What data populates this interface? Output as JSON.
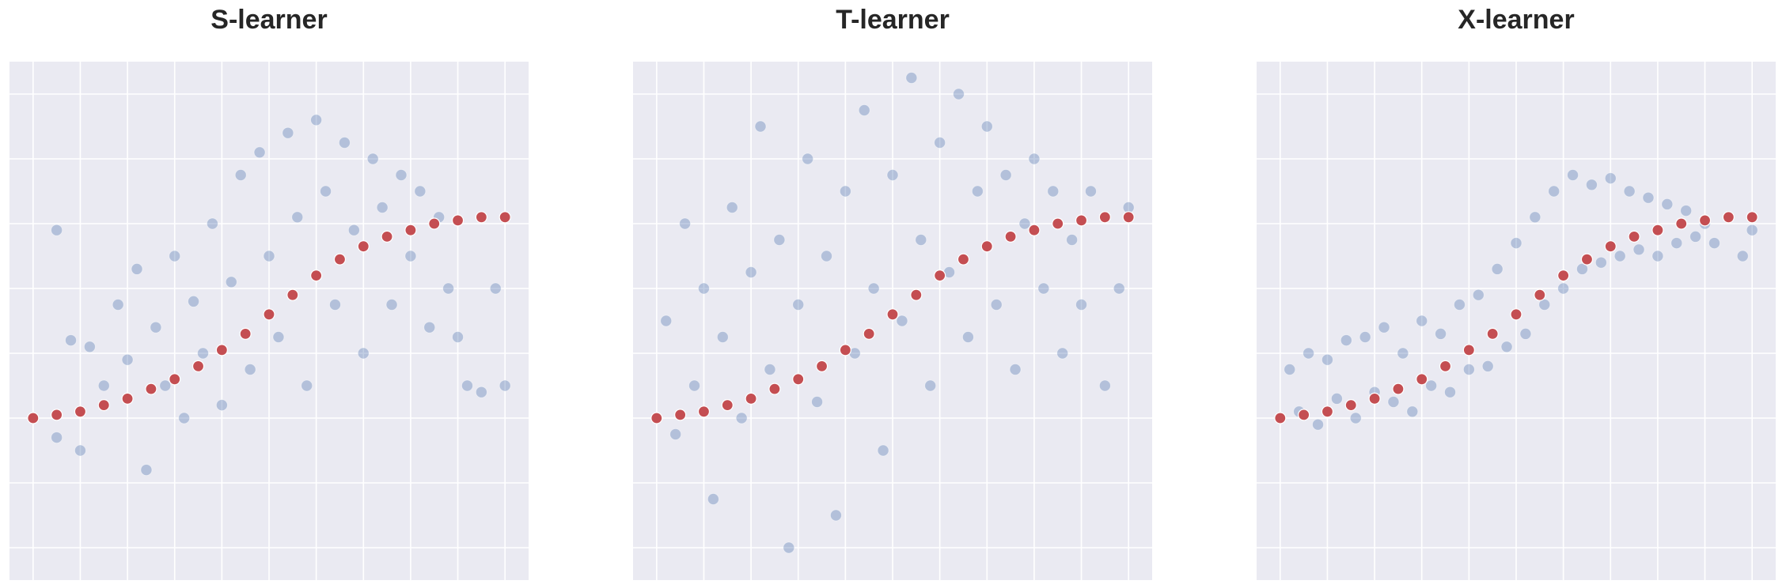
{
  "colors": {
    "background": "#eaeaf2",
    "grid": "#ffffff",
    "scatter": "#4c72b0",
    "curve": "#c44e52"
  },
  "chart_data": [
    {
      "type": "scatter",
      "title": "S-learner",
      "xlabel": "",
      "ylabel": "",
      "xlim": [
        -0.05,
        1.05
      ],
      "ylim": [
        -0.3,
        1.3
      ],
      "grid": true,
      "series": [
        {
          "role": "estimates",
          "color": "#4c72b0",
          "alpha": 0.35,
          "points": [
            [
              0.05,
              0.14
            ],
            [
              0.08,
              0.44
            ],
            [
              0.05,
              0.78
            ],
            [
              0.1,
              0.1
            ],
            [
              0.12,
              0.42
            ],
            [
              0.15,
              0.3
            ],
            [
              0.18,
              0.55
            ],
            [
              0.2,
              0.38
            ],
            [
              0.22,
              0.66
            ],
            [
              0.24,
              0.04
            ],
            [
              0.26,
              0.48
            ],
            [
              0.28,
              0.3
            ],
            [
              0.3,
              0.7
            ],
            [
              0.32,
              0.2
            ],
            [
              0.34,
              0.56
            ],
            [
              0.36,
              0.4
            ],
            [
              0.38,
              0.8
            ],
            [
              0.4,
              0.24
            ],
            [
              0.42,
              0.62
            ],
            [
              0.44,
              0.95
            ],
            [
              0.46,
              0.35
            ],
            [
              0.48,
              1.02
            ],
            [
              0.5,
              0.7
            ],
            [
              0.52,
              0.45
            ],
            [
              0.54,
              1.08
            ],
            [
              0.56,
              0.82
            ],
            [
              0.58,
              0.3
            ],
            [
              0.6,
              1.12
            ],
            [
              0.62,
              0.9
            ],
            [
              0.64,
              0.55
            ],
            [
              0.66,
              1.05
            ],
            [
              0.68,
              0.78
            ],
            [
              0.7,
              0.4
            ],
            [
              0.72,
              1.0
            ],
            [
              0.74,
              0.85
            ],
            [
              0.76,
              0.55
            ],
            [
              0.78,
              0.95
            ],
            [
              0.8,
              0.7
            ],
            [
              0.82,
              0.9
            ],
            [
              0.84,
              0.48
            ],
            [
              0.86,
              0.82
            ],
            [
              0.88,
              0.6
            ],
            [
              0.9,
              0.45
            ],
            [
              0.92,
              0.3
            ],
            [
              0.95,
              0.28
            ],
            [
              0.98,
              0.6
            ],
            [
              1.0,
              0.3
            ]
          ]
        },
        {
          "role": "true-effect",
          "color": "#c44e52",
          "points": [
            [
              0.0,
              0.2
            ],
            [
              0.05,
              0.21
            ],
            [
              0.1,
              0.22
            ],
            [
              0.15,
              0.24
            ],
            [
              0.2,
              0.26
            ],
            [
              0.25,
              0.29
            ],
            [
              0.3,
              0.32
            ],
            [
              0.35,
              0.36
            ],
            [
              0.4,
              0.41
            ],
            [
              0.45,
              0.46
            ],
            [
              0.5,
              0.52
            ],
            [
              0.55,
              0.58
            ],
            [
              0.6,
              0.64
            ],
            [
              0.65,
              0.69
            ],
            [
              0.7,
              0.73
            ],
            [
              0.75,
              0.76
            ],
            [
              0.8,
              0.78
            ],
            [
              0.85,
              0.8
            ],
            [
              0.9,
              0.81
            ],
            [
              0.95,
              0.82
            ],
            [
              1.0,
              0.82
            ]
          ]
        }
      ]
    },
    {
      "type": "scatter",
      "title": "T-learner",
      "xlabel": "",
      "ylabel": "",
      "xlim": [
        -0.05,
        1.05
      ],
      "ylim": [
        -0.3,
        1.3
      ],
      "grid": true,
      "series": [
        {
          "role": "estimates",
          "color": "#4c72b0",
          "alpha": 0.35,
          "points": [
            [
              0.02,
              0.5
            ],
            [
              0.04,
              0.15
            ],
            [
              0.06,
              0.8
            ],
            [
              0.08,
              0.3
            ],
            [
              0.1,
              0.6
            ],
            [
              0.12,
              -0.05
            ],
            [
              0.14,
              0.45
            ],
            [
              0.16,
              0.85
            ],
            [
              0.18,
              0.2
            ],
            [
              0.2,
              0.65
            ],
            [
              0.22,
              1.1
            ],
            [
              0.24,
              0.35
            ],
            [
              0.26,
              0.75
            ],
            [
              0.28,
              -0.2
            ],
            [
              0.3,
              0.55
            ],
            [
              0.32,
              1.0
            ],
            [
              0.34,
              0.25
            ],
            [
              0.36,
              0.7
            ],
            [
              0.38,
              -0.1
            ],
            [
              0.4,
              0.9
            ],
            [
              0.42,
              0.4
            ],
            [
              0.44,
              1.15
            ],
            [
              0.46,
              0.6
            ],
            [
              0.48,
              0.1
            ],
            [
              0.5,
              0.95
            ],
            [
              0.52,
              0.5
            ],
            [
              0.54,
              1.25
            ],
            [
              0.56,
              0.75
            ],
            [
              0.58,
              0.3
            ],
            [
              0.6,
              1.05
            ],
            [
              0.62,
              0.65
            ],
            [
              0.64,
              1.2
            ],
            [
              0.66,
              0.45
            ],
            [
              0.68,
              0.9
            ],
            [
              0.7,
              1.1
            ],
            [
              0.72,
              0.55
            ],
            [
              0.74,
              0.95
            ],
            [
              0.76,
              0.35
            ],
            [
              0.78,
              0.8
            ],
            [
              0.8,
              1.0
            ],
            [
              0.82,
              0.6
            ],
            [
              0.84,
              0.9
            ],
            [
              0.86,
              0.4
            ],
            [
              0.88,
              0.75
            ],
            [
              0.9,
              0.55
            ],
            [
              0.92,
              0.9
            ],
            [
              0.95,
              0.3
            ],
            [
              0.98,
              0.6
            ],
            [
              1.0,
              0.85
            ]
          ]
        },
        {
          "role": "true-effect",
          "color": "#c44e52",
          "points": [
            [
              0.0,
              0.2
            ],
            [
              0.05,
              0.21
            ],
            [
              0.1,
              0.22
            ],
            [
              0.15,
              0.24
            ],
            [
              0.2,
              0.26
            ],
            [
              0.25,
              0.29
            ],
            [
              0.3,
              0.32
            ],
            [
              0.35,
              0.36
            ],
            [
              0.4,
              0.41
            ],
            [
              0.45,
              0.46
            ],
            [
              0.5,
              0.52
            ],
            [
              0.55,
              0.58
            ],
            [
              0.6,
              0.64
            ],
            [
              0.65,
              0.69
            ],
            [
              0.7,
              0.73
            ],
            [
              0.75,
              0.76
            ],
            [
              0.8,
              0.78
            ],
            [
              0.85,
              0.8
            ],
            [
              0.9,
              0.81
            ],
            [
              0.95,
              0.82
            ],
            [
              1.0,
              0.82
            ]
          ]
        }
      ]
    },
    {
      "type": "scatter",
      "title": "X-learner",
      "xlabel": "",
      "ylabel": "",
      "xlim": [
        -0.05,
        1.05
      ],
      "ylim": [
        -0.3,
        1.3
      ],
      "grid": true,
      "series": [
        {
          "role": "estimates",
          "color": "#4c72b0",
          "alpha": 0.35,
          "points": [
            [
              0.02,
              0.35
            ],
            [
              0.04,
              0.22
            ],
            [
              0.06,
              0.4
            ],
            [
              0.08,
              0.18
            ],
            [
              0.1,
              0.38
            ],
            [
              0.12,
              0.26
            ],
            [
              0.14,
              0.44
            ],
            [
              0.16,
              0.2
            ],
            [
              0.18,
              0.45
            ],
            [
              0.2,
              0.28
            ],
            [
              0.22,
              0.48
            ],
            [
              0.24,
              0.25
            ],
            [
              0.26,
              0.4
            ],
            [
              0.28,
              0.22
            ],
            [
              0.3,
              0.5
            ],
            [
              0.32,
              0.3
            ],
            [
              0.34,
              0.46
            ],
            [
              0.36,
              0.28
            ],
            [
              0.38,
              0.55
            ],
            [
              0.4,
              0.35
            ],
            [
              0.42,
              0.58
            ],
            [
              0.44,
              0.36
            ],
            [
              0.46,
              0.66
            ],
            [
              0.48,
              0.42
            ],
            [
              0.5,
              0.74
            ],
            [
              0.52,
              0.46
            ],
            [
              0.54,
              0.82
            ],
            [
              0.56,
              0.55
            ],
            [
              0.58,
              0.9
            ],
            [
              0.6,
              0.6
            ],
            [
              0.62,
              0.95
            ],
            [
              0.64,
              0.66
            ],
            [
              0.66,
              0.92
            ],
            [
              0.68,
              0.68
            ],
            [
              0.7,
              0.94
            ],
            [
              0.72,
              0.7
            ],
            [
              0.74,
              0.9
            ],
            [
              0.76,
              0.72
            ],
            [
              0.78,
              0.88
            ],
            [
              0.8,
              0.7
            ],
            [
              0.82,
              0.86
            ],
            [
              0.84,
              0.74
            ],
            [
              0.86,
              0.84
            ],
            [
              0.88,
              0.76
            ],
            [
              0.9,
              0.8
            ],
            [
              0.92,
              0.74
            ],
            [
              0.95,
              0.82
            ],
            [
              0.98,
              0.7
            ],
            [
              1.0,
              0.78
            ]
          ]
        },
        {
          "role": "true-effect",
          "color": "#c44e52",
          "points": [
            [
              0.0,
              0.2
            ],
            [
              0.05,
              0.21
            ],
            [
              0.1,
              0.22
            ],
            [
              0.15,
              0.24
            ],
            [
              0.2,
              0.26
            ],
            [
              0.25,
              0.29
            ],
            [
              0.3,
              0.32
            ],
            [
              0.35,
              0.36
            ],
            [
              0.4,
              0.41
            ],
            [
              0.45,
              0.46
            ],
            [
              0.5,
              0.52
            ],
            [
              0.55,
              0.58
            ],
            [
              0.6,
              0.64
            ],
            [
              0.65,
              0.69
            ],
            [
              0.7,
              0.73
            ],
            [
              0.75,
              0.76
            ],
            [
              0.8,
              0.78
            ],
            [
              0.85,
              0.8
            ],
            [
              0.9,
              0.81
            ],
            [
              0.95,
              0.82
            ],
            [
              1.0,
              0.82
            ]
          ]
        }
      ]
    }
  ]
}
